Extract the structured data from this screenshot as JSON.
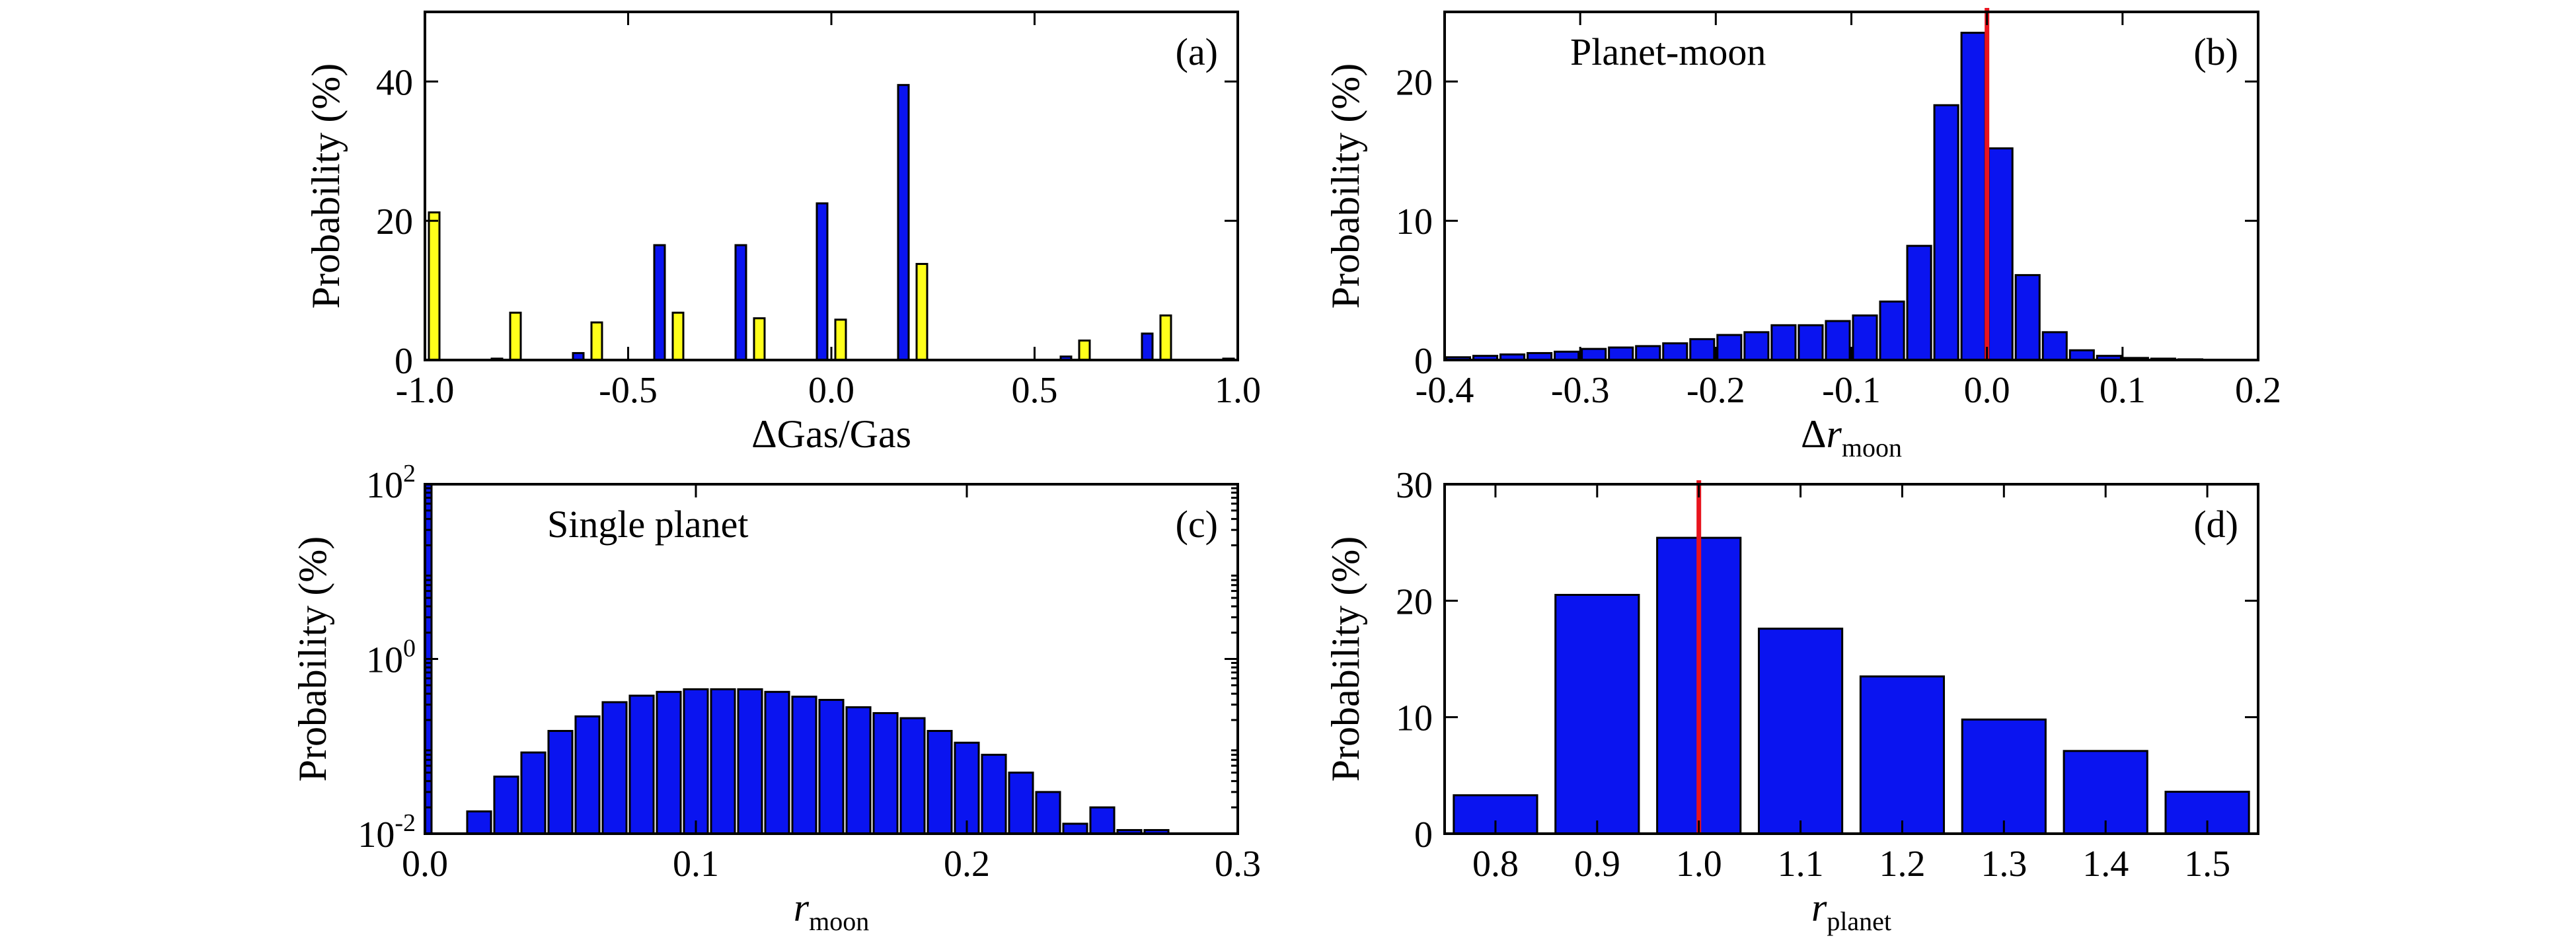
{
  "chart_data": [
    {
      "id": "a",
      "type": "bar",
      "panel_label": "(a)",
      "xlabel": "ΔGas/Gas",
      "ylabel": "Probability (%)",
      "xlim": [
        -1.0,
        1.0
      ],
      "ylim": [
        0,
        50
      ],
      "xticks": [
        -1.0,
        -0.5,
        0.0,
        0.5,
        1.0
      ],
      "xticklabels": [
        "-1.0",
        "-0.5",
        "0.0",
        "0.5",
        "1.0"
      ],
      "yticks": [
        0,
        20,
        40
      ],
      "yticklabels": [
        "0",
        "20",
        "40"
      ],
      "x": [
        -1.0,
        -0.8,
        -0.6,
        -0.4,
        -0.2,
        0.0,
        0.2,
        0.4,
        0.6,
        0.8,
        1.0
      ],
      "series": [
        {
          "color": "#0a14f0",
          "values": [
            0,
            0.2,
            1.0,
            16.5,
            16.5,
            22.5,
            39.5,
            0,
            0.5,
            3.8,
            0.2
          ]
        },
        {
          "color": "#ffff1a",
          "values": [
            21.2,
            6.8,
            5.4,
            6.8,
            6.0,
            5.8,
            13.8,
            0,
            2.8,
            6.4,
            0
          ]
        }
      ]
    },
    {
      "id": "b",
      "type": "bar",
      "panel_label": "(b)",
      "annotation": "Planet-moon",
      "xlabel": "Δr",
      "xlabel_sub": "moon",
      "ylabel": "Probability (%)",
      "xlim": [
        -0.4,
        0.2
      ],
      "ylim": [
        0,
        25
      ],
      "xticks": [
        -0.4,
        -0.3,
        -0.2,
        -0.1,
        0.0,
        0.1,
        0.2
      ],
      "xticklabels": [
        "-0.4",
        "-0.3",
        "-0.2",
        "-0.1",
        "0.0",
        "0.1",
        "0.2"
      ],
      "yticks": [
        0,
        10,
        20
      ],
      "yticklabels": [
        "0",
        "10",
        "20"
      ],
      "bar_color": "#0a14f0",
      "reference_line_x": 0.0,
      "reference_line_color": "#e8141e",
      "x": [
        -0.39,
        -0.37,
        -0.35,
        -0.33,
        -0.31,
        -0.29,
        -0.27,
        -0.25,
        -0.23,
        -0.21,
        -0.19,
        -0.17,
        -0.15,
        -0.13,
        -0.11,
        -0.09,
        -0.07,
        -0.05,
        -0.03,
        -0.01,
        0.01,
        0.03,
        0.05,
        0.07,
        0.09,
        0.11,
        0.13,
        0.15,
        0.17,
        0.19
      ],
      "values": [
        0.2,
        0.3,
        0.4,
        0.5,
        0.6,
        0.8,
        0.9,
        1.0,
        1.2,
        1.5,
        1.8,
        2.0,
        2.5,
        2.5,
        2.8,
        3.2,
        4.2,
        8.2,
        18.3,
        23.5,
        15.2,
        6.1,
        2.0,
        0.7,
        0.3,
        0.15,
        0.1,
        0.05,
        0.02,
        0
      ],
      "bin_width": 0.02
    },
    {
      "id": "c",
      "type": "bar",
      "panel_label": "(c)",
      "annotation": "Single planet",
      "xlabel": "r",
      "xlabel_sub": "moon",
      "ylabel": "Probability (%)",
      "yscale": "log",
      "xlim": [
        0.0,
        0.3
      ],
      "ylim": [
        0.01,
        100
      ],
      "xticks": [
        0.0,
        0.1,
        0.2,
        0.3
      ],
      "xticklabels": [
        "0.0",
        "0.1",
        "0.2",
        "0.3"
      ],
      "yticks": [
        0.01,
        1,
        100
      ],
      "yticklabels": [
        {
          "base": "10",
          "exp": "-2"
        },
        {
          "base": "10",
          "exp": "0"
        },
        {
          "base": "10",
          "exp": "2"
        }
      ],
      "bar_color": "#0a14f0",
      "x": [
        0.0,
        0.02,
        0.03,
        0.04,
        0.05,
        0.06,
        0.07,
        0.08,
        0.09,
        0.1,
        0.11,
        0.12,
        0.13,
        0.14,
        0.15,
        0.16,
        0.17,
        0.18,
        0.19,
        0.2,
        0.21,
        0.22,
        0.23,
        0.24,
        0.25,
        0.26,
        0.27
      ],
      "values": [
        100,
        0.018,
        0.045,
        0.085,
        0.15,
        0.22,
        0.32,
        0.38,
        0.42,
        0.45,
        0.45,
        0.45,
        0.42,
        0.37,
        0.34,
        0.28,
        0.24,
        0.21,
        0.15,
        0.11,
        0.08,
        0.05,
        0.03,
        0.013,
        0.02,
        0.011,
        0.011
      ],
      "bin_width": 0.01
    },
    {
      "id": "d",
      "type": "bar",
      "panel_label": "(d)",
      "xlabel": "r",
      "xlabel_sub": "planet",
      "ylabel": "Probability (%)",
      "xlim": [
        0.75,
        1.55
      ],
      "ylim": [
        0,
        30
      ],
      "xticks": [
        0.8,
        0.9,
        1.0,
        1.1,
        1.2,
        1.3,
        1.4,
        1.5
      ],
      "xticklabels": [
        "0.8",
        "0.9",
        "1.0",
        "1.1",
        "1.2",
        "1.3",
        "1.4",
        "1.5"
      ],
      "yticks": [
        0,
        10,
        20,
        30
      ],
      "yticklabels": [
        "0",
        "10",
        "20",
        "30"
      ],
      "bar_color": "#0a14f0",
      "reference_line_x": 1.0,
      "reference_line_color": "#e8141e",
      "x": [
        0.8,
        0.9,
        1.0,
        1.1,
        1.2,
        1.3,
        1.4,
        1.5
      ],
      "values": [
        3.3,
        20.5,
        25.4,
        17.6,
        13.5,
        9.8,
        7.1,
        3.6
      ],
      "bin_width": 0.1
    }
  ]
}
